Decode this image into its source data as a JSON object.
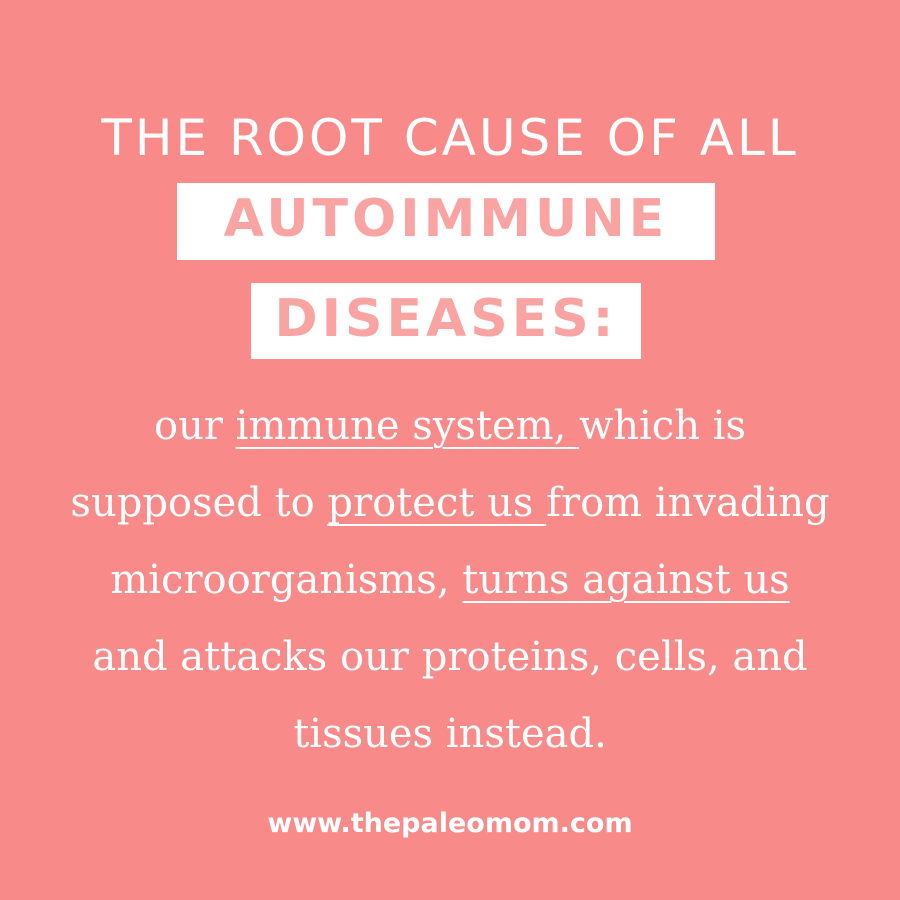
{
  "headline": "THE ROOT CAUSE OF ALL",
  "highlight_line_1": "AUTOIMMUNE",
  "highlight_line_2": "DISEASES:",
  "body": {
    "line1": {
      "a": "our ",
      "u": "immune system, ",
      "b": "which is"
    },
    "line2": {
      "a": "supposed to ",
      "u": "protect us ",
      "b": "from invading"
    },
    "line3": {
      "a": "microorganisms, ",
      "u": "turns against us"
    },
    "line4": "and attacks our proteins, cells, and",
    "line5": "tissues instead."
  },
  "footer_url": "www.thepaleomom.com",
  "colors": {
    "background": "#f98a8a",
    "text": "#ffffff",
    "highlight_text": "#f9a3a3",
    "highlight_box": "#ffffff"
  }
}
